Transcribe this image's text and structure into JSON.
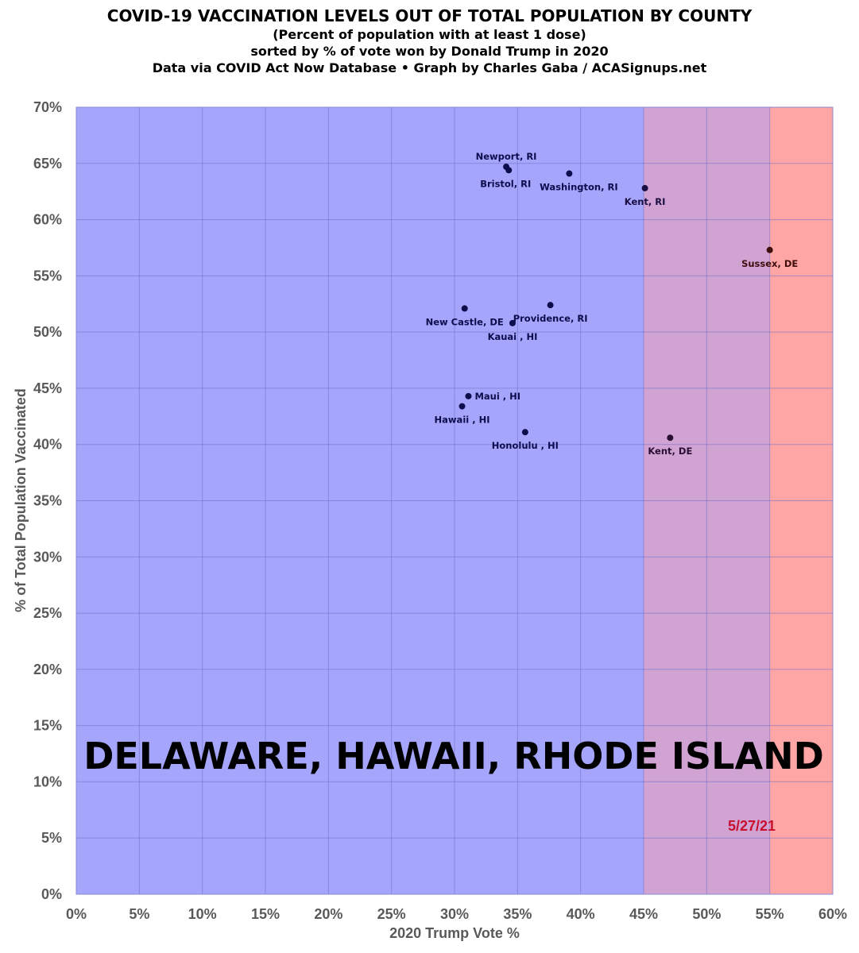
{
  "chart_data": {
    "type": "scatter",
    "title": "COVID-19 VACCINATION LEVELS OUT OF TOTAL POPULATION BY COUNTY",
    "subtitles": [
      "(Percent of population with at least 1 dose)",
      "sorted by % of vote won by Donald Trump in 2020",
      "Data via COVID Act Now Database • Graph by Charles Gaba / ACASignups.net"
    ],
    "xlabel": "2020 Trump Vote %",
    "ylabel": "% of Total Population Vaccinated",
    "xlim": [
      0,
      60
    ],
    "ylim": [
      0,
      70
    ],
    "xticks": [
      0,
      5,
      10,
      15,
      20,
      25,
      30,
      35,
      40,
      45,
      50,
      55,
      60
    ],
    "yticks": [
      0,
      5,
      10,
      15,
      20,
      25,
      30,
      35,
      40,
      45,
      50,
      55,
      60,
      65,
      70
    ],
    "tick_suffix": "%",
    "grid": true,
    "background_bands": [
      {
        "from": 0,
        "to": 45,
        "color": "#a5a5fc"
      },
      {
        "from": 45,
        "to": 55,
        "color": "#d0a3d3"
      },
      {
        "from": 55,
        "to": 60,
        "color": "#fea6a6"
      }
    ],
    "points": [
      {
        "label": "Newport, RI",
        "x": 34.1,
        "y": 64.7,
        "color": "#0d0d4d"
      },
      {
        "label": "Bristol, RI",
        "x": 34.3,
        "y": 64.4,
        "color": "#0d0d4d"
      },
      {
        "label": "Washington, RI",
        "x": 39.1,
        "y": 64.1,
        "color": "#0d0d4d"
      },
      {
        "label": "Kent, RI",
        "x": 45.1,
        "y": 62.8,
        "color": "#1a0d40"
      },
      {
        "label": "Sussex, DE",
        "x": 55.0,
        "y": 57.3,
        "color": "#400d0d"
      },
      {
        "label": "New Castle, DE",
        "x": 30.8,
        "y": 52.1,
        "color": "#0d0d4d"
      },
      {
        "label": "Providence, RI",
        "x": 37.6,
        "y": 52.4,
        "color": "#0d0d4d"
      },
      {
        "label": "Kauai , HI",
        "x": 34.6,
        "y": 50.8,
        "color": "#0d0d4d"
      },
      {
        "label": "Maui , HI",
        "x": 31.1,
        "y": 44.3,
        "color": "#0d0d4d"
      },
      {
        "label": "Hawaii , HI",
        "x": 30.6,
        "y": 43.4,
        "color": "#0d0d4d"
      },
      {
        "label": "Honolulu , HI",
        "x": 35.6,
        "y": 41.1,
        "color": "#0d0d4d"
      },
      {
        "label": "Kent, DE",
        "x": 47.1,
        "y": 40.6,
        "color": "#2a0d33"
      }
    ],
    "annotations": {
      "banner": "DELAWARE, HAWAII, RHODE ISLAND",
      "date": "5/27/21"
    }
  }
}
